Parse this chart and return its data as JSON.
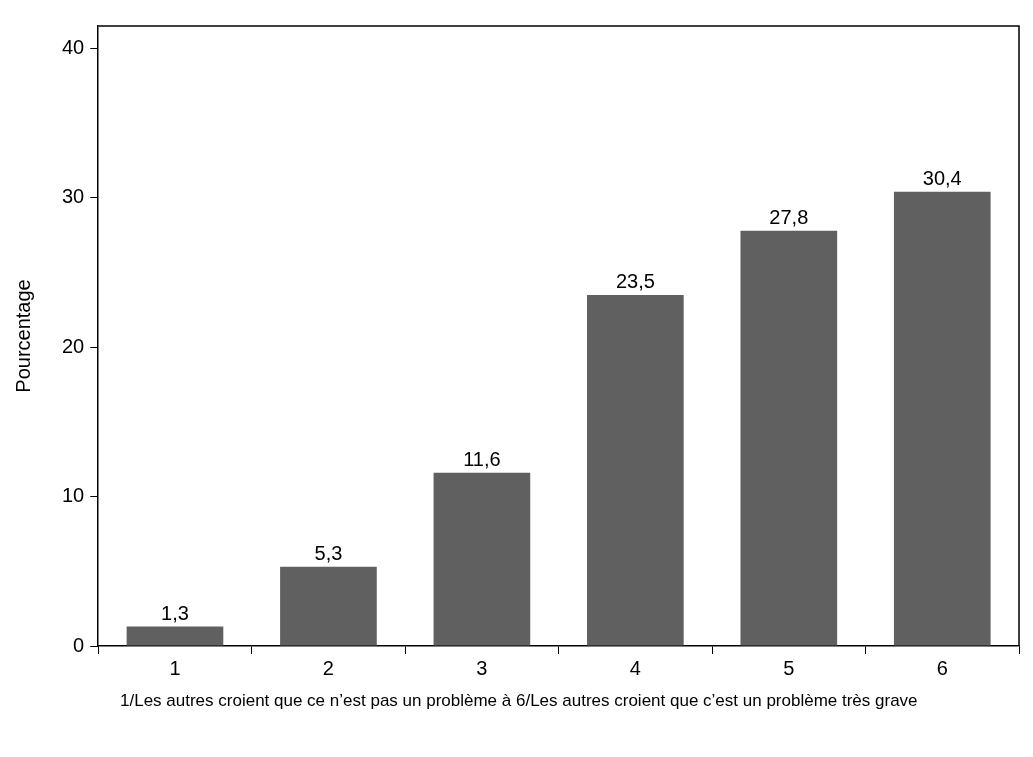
{
  "chart_data": {
    "type": "bar",
    "xlabel": "1/Les autres croient que ce n’est pas un problème à 6/Les autres croient que c’est un problème très grave",
    "ylabel": "Pourcentage",
    "categories": [
      "1",
      "2",
      "3",
      "4",
      "5",
      "6"
    ],
    "values": [
      1.3,
      5.3,
      11.6,
      23.5,
      27.8,
      30.4
    ],
    "value_labels": [
      "1,3",
      "5,3",
      "11,6",
      "23,5",
      "27,8",
      "30,4"
    ],
    "color": "#606060",
    "ylim": [
      0,
      41.5
    ],
    "yticks": [
      0,
      10,
      20,
      30,
      40
    ],
    "grid": false,
    "legend": false
  }
}
